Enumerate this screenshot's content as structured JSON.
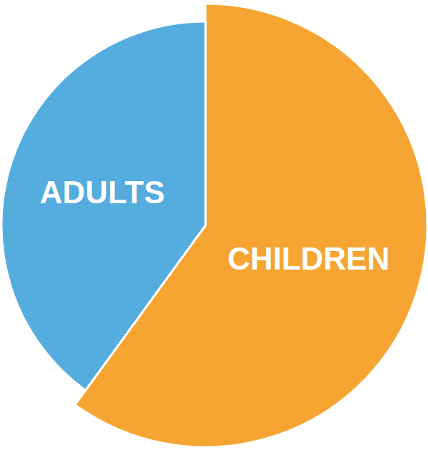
{
  "chart_data": {
    "type": "pie",
    "categories": [
      "CHILDREN",
      "ADULTS"
    ],
    "values": [
      60,
      40
    ],
    "colors": [
      "#F6A532",
      "#55ACDE"
    ]
  }
}
